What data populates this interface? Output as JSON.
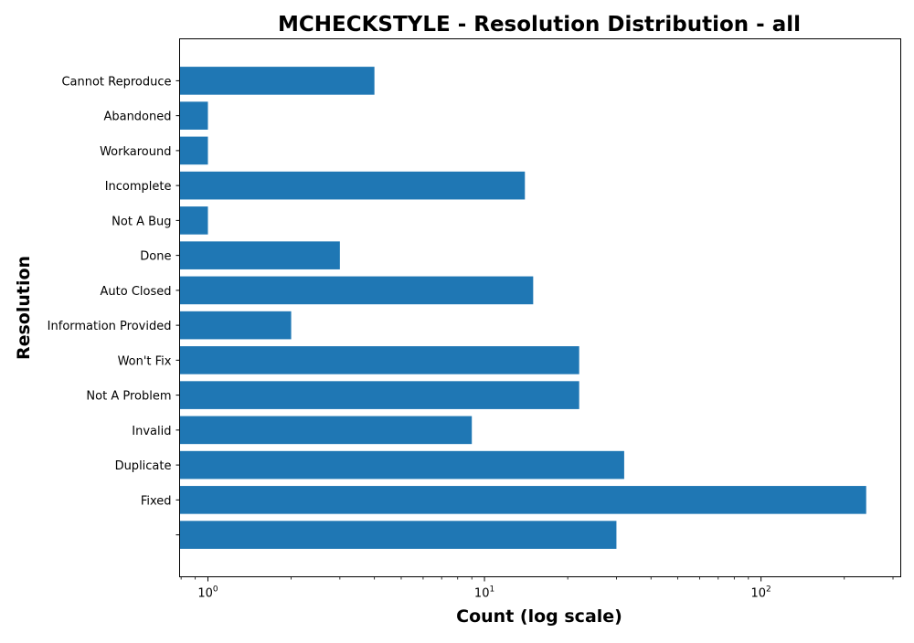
{
  "chart_data": {
    "type": "bar",
    "orientation": "horizontal",
    "title": "MCHECKSTYLE - Resolution Distribution - all",
    "xlabel": "Count (log scale)",
    "ylabel": "Resolution",
    "x_scale": "log",
    "xlim": [
      0.79,
      320
    ],
    "x_ticks": [
      {
        "value": 1,
        "base": "10",
        "exp": "0"
      },
      {
        "value": 10,
        "base": "10",
        "exp": "1"
      },
      {
        "value": 100,
        "base": "10",
        "exp": "2"
      }
    ],
    "grid": false,
    "legend": "none",
    "bar_color": "#1f77b4",
    "categories": [
      "Cannot Reproduce",
      "Abandoned",
      "Workaround",
      "Incomplete",
      "Not A Bug",
      "Done",
      "Auto Closed",
      "Information Provided",
      "Won't Fix",
      "Not A Problem",
      "Invalid",
      "Duplicate",
      "Fixed",
      ""
    ],
    "values": [
      4,
      1,
      1,
      14,
      1,
      3,
      15,
      2,
      22,
      22,
      9,
      32,
      240,
      30
    ]
  }
}
